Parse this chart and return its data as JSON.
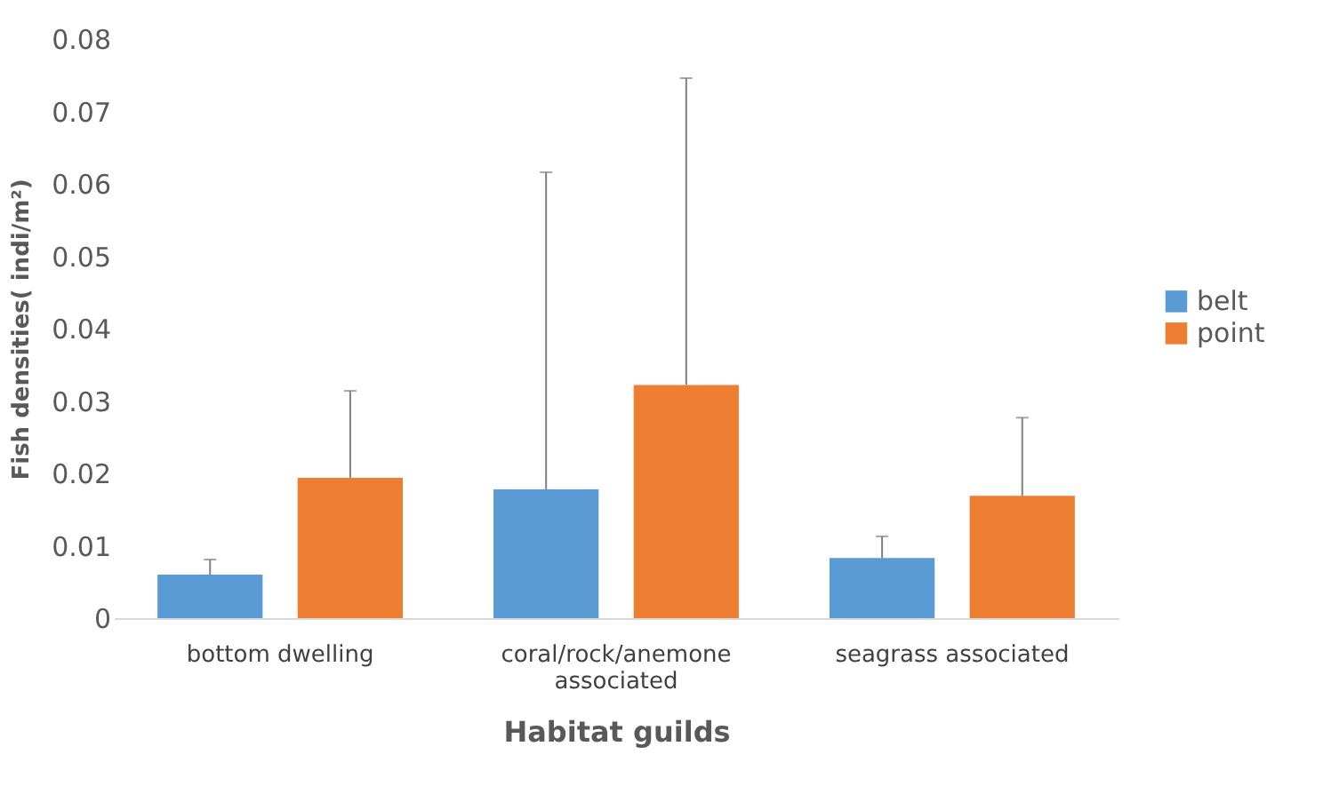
{
  "chart_data": {
    "type": "bar",
    "xlabel": "Habitat guilds",
    "ylabel": "Fish densities( indi/m²)",
    "categories": [
      "bottom dwelling",
      "coral/rock/anemone associated",
      "seagrass associated"
    ],
    "series": [
      {
        "name": "belt",
        "color": "#5b9bd5",
        "values": [
          0.006,
          0.0178,
          0.0083
        ],
        "errors": [
          [
            0.006,
            0.0081
          ],
          [
            0.0178,
            0.0616
          ],
          [
            0.0083,
            0.0113
          ]
        ]
      },
      {
        "name": "point",
        "color": "#ed7d31",
        "values": [
          0.0194,
          0.0322,
          0.0169
        ],
        "errors": [
          [
            0.0194,
            0.0314
          ],
          [
            0.0322,
            0.0746
          ],
          [
            0.0169,
            0.0277
          ]
        ]
      }
    ],
    "ylim": [
      0,
      0.08
    ],
    "yticks": [
      {
        "value": 0,
        "label": "0"
      },
      0.01,
      0.02,
      0.03,
      0.04,
      0.05,
      0.06,
      0.07,
      0.08
    ],
    "grid": false,
    "legend": "right"
  }
}
